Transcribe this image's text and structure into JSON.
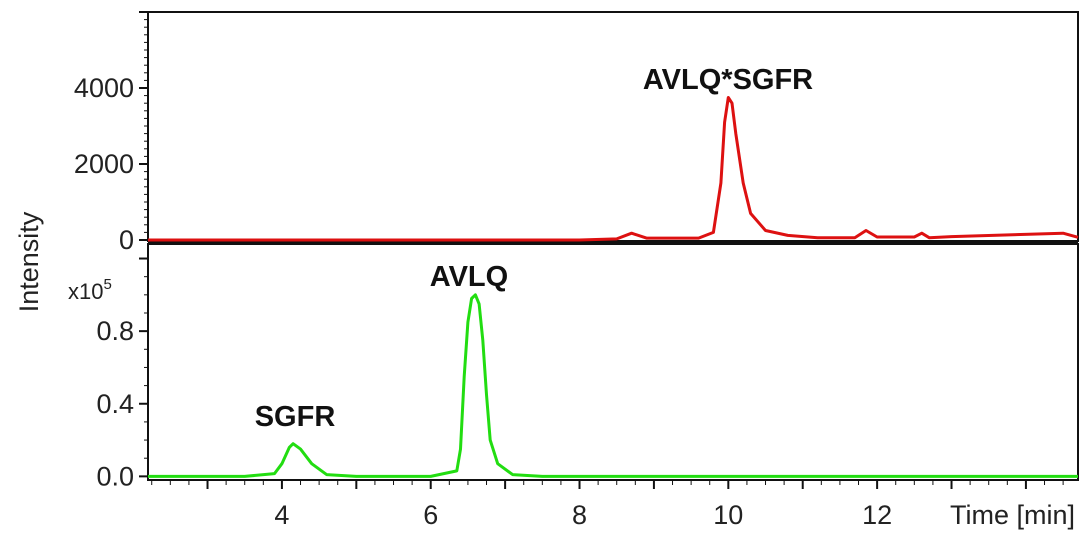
{
  "chart_data": [
    {
      "type": "line",
      "panel": "top",
      "ylabel": "Intensity",
      "xlim": [
        2.2,
        14.7
      ],
      "ylim": [
        0,
        6000
      ],
      "yticks": [
        0,
        2000,
        4000
      ],
      "ytick_labels": [
        "0",
        "2000",
        "4000"
      ],
      "series": [
        {
          "color": "#dd1111",
          "x": [
            2.2,
            5.0,
            8.0,
            8.5,
            8.7,
            8.9,
            9.6,
            9.8,
            9.9,
            9.95,
            10.0,
            10.05,
            10.1,
            10.2,
            10.3,
            10.5,
            10.8,
            11.2,
            11.7,
            11.85,
            12.0,
            12.5,
            12.6,
            12.7,
            13.0,
            14.5,
            14.7
          ],
          "values": [
            0,
            0,
            0,
            30,
            180,
            50,
            50,
            200,
            1500,
            3100,
            3750,
            3600,
            2800,
            1500,
            700,
            250,
            120,
            60,
            60,
            250,
            80,
            80,
            180,
            60,
            90,
            180,
            70
          ]
        }
      ],
      "annotations": [
        {
          "text": "AVLQ*SGFR",
          "x": 10.0,
          "y": 4400
        }
      ]
    },
    {
      "type": "line",
      "panel": "bottom",
      "xlabel": "Time [min]",
      "xlim": [
        2.2,
        14.7
      ],
      "ylim": [
        -0.02,
        1.28
      ],
      "y_multiplier": "x10",
      "y_multiplier_exp": "5",
      "yticks": [
        0.0,
        0.4,
        0.8
      ],
      "ytick_labels": [
        "0.0",
        "0.4",
        "0.8"
      ],
      "xticks": [
        4,
        6,
        8,
        10,
        12
      ],
      "xtick_labels": [
        "4",
        "6",
        "8",
        "10",
        "12"
      ],
      "series": [
        {
          "color": "#22dd11",
          "x": [
            2.2,
            3.5,
            3.9,
            4.0,
            4.1,
            4.15,
            4.25,
            4.4,
            4.6,
            5.0,
            6.0,
            6.35,
            6.4,
            6.45,
            6.5,
            6.55,
            6.6,
            6.65,
            6.7,
            6.75,
            6.8,
            6.9,
            7.1,
            7.5,
            9.0,
            14.7
          ],
          "values": [
            0.0,
            0.0,
            0.015,
            0.07,
            0.16,
            0.18,
            0.15,
            0.07,
            0.01,
            0.0,
            0.0,
            0.03,
            0.15,
            0.55,
            0.85,
            0.98,
            1.0,
            0.95,
            0.75,
            0.45,
            0.2,
            0.07,
            0.01,
            0.0,
            0.0,
            0.0
          ]
        }
      ],
      "annotations": [
        {
          "text": "SGFR",
          "x": 4.15,
          "y": 0.31
        },
        {
          "text": "AVLQ",
          "x": 6.6,
          "y": 1.13
        }
      ]
    }
  ]
}
